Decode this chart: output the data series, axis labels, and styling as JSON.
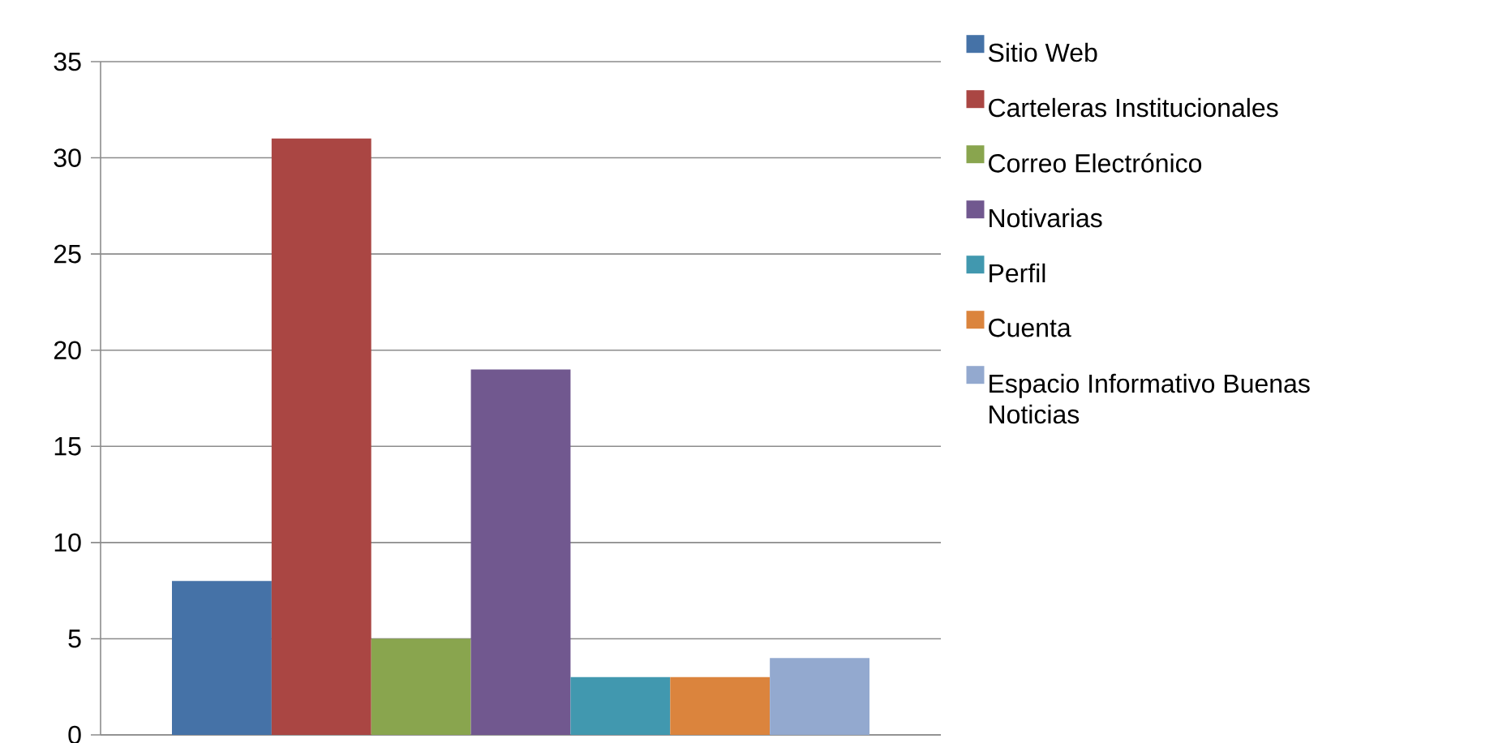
{
  "chart_data": {
    "type": "bar",
    "categories": [
      null
    ],
    "series": [
      {
        "name": "Sitio Web",
        "color": "#4572a7",
        "values": [
          8
        ]
      },
      {
        "name": "Carteleras Institucionales",
        "color": "#aa4643",
        "values": [
          31
        ]
      },
      {
        "name": "Correo Electrónico",
        "color": "#89a54e",
        "values": [
          5
        ]
      },
      {
        "name": "Notivarias",
        "color": "#71588f",
        "values": [
          19
        ]
      },
      {
        "name": "Perfil",
        "color": "#4198af",
        "values": [
          3
        ]
      },
      {
        "name": "Cuenta",
        "color": "#db843d",
        "values": [
          3
        ]
      },
      {
        "name": "Espacio Informativo Buenas Noticias",
        "color": "#93a9cf",
        "values": [
          4
        ]
      }
    ],
    "ylim": [
      0,
      35
    ],
    "yticks": [
      0,
      5,
      10,
      15,
      20,
      25,
      30,
      35
    ],
    "grid": "y",
    "legend": "right"
  }
}
